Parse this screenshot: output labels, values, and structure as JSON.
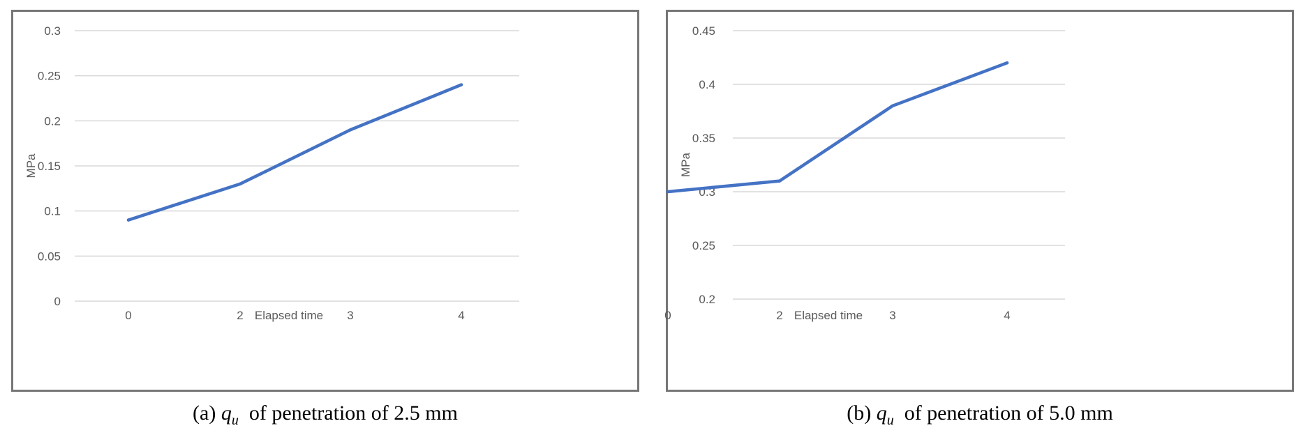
{
  "chart_data": [
    {
      "type": "line",
      "categories": [
        "0",
        "2",
        "3",
        "4"
      ],
      "series": [
        {
          "name": "q_u at penetration of 2.5 mm",
          "values": [
            0.09,
            0.13,
            0.19,
            0.24
          ],
          "color": "#4472c4"
        }
      ],
      "ylabel": "MPa",
      "xlabel": "Elapsed time",
      "ylim": [
        0,
        0.3
      ],
      "yticks": [
        "0",
        "0.05",
        "0.1",
        "0.15",
        "0.2",
        "0.25",
        "0.3"
      ],
      "grid": true,
      "caption": {
        "prefix": "(a)",
        "symbol": "q",
        "subscript": "u",
        "rest": "of penetration of 2.5 mm"
      }
    },
    {
      "type": "line",
      "categories": [
        "0",
        "2",
        "3",
        "4"
      ],
      "series": [
        {
          "name": "q_u at penetration of 5.0 mm",
          "values": [
            0.3,
            0.31,
            0.38,
            0.42
          ],
          "color": "#4472c4"
        }
      ],
      "ylabel": "MPa",
      "xlabel": "Elapsed time",
      "ylim": [
        0.2,
        0.45
      ],
      "yticks": [
        "0.2",
        "0.25",
        "0.3",
        "0.35",
        "0.4",
        "0.45"
      ],
      "grid": true,
      "caption": {
        "prefix": "(b)",
        "symbol": "q",
        "subscript": "u",
        "rest": "of penetration of 5.0 mm"
      }
    }
  ]
}
